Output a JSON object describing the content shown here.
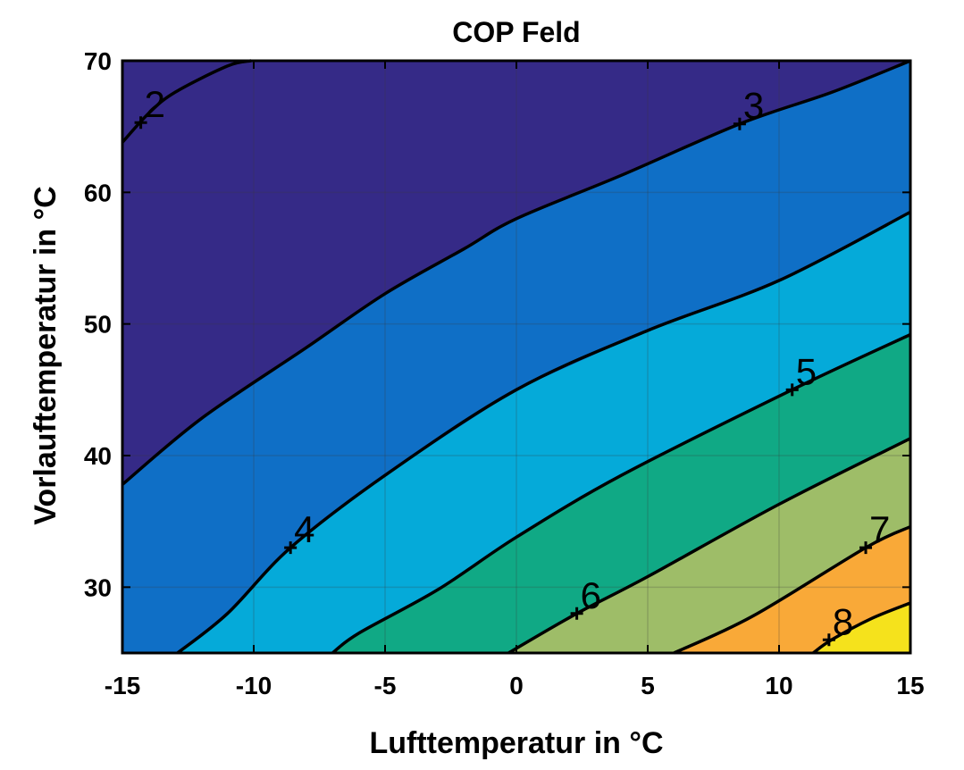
{
  "chart_data": {
    "type": "contourf",
    "title": "COP Feld",
    "xlabel": "Lufttemperatur in °C",
    "ylabel": "Vorlauftemperatur in °C",
    "xlim": [
      -15,
      15
    ],
    "ylim": [
      25,
      70
    ],
    "xticks": [
      "-15",
      "-10",
      "-5",
      "0",
      "5",
      "10",
      "15"
    ],
    "yticks": [
      "30",
      "40",
      "50",
      "60",
      "70"
    ],
    "grid": true,
    "contour_levels": [
      2,
      3,
      4,
      5,
      6,
      7,
      8
    ],
    "fill_colors": [
      "#352a87",
      "#352a87",
      "#0f6fc6",
      "#05aad9",
      "#10a985",
      "#9ebd68",
      "#f9a938",
      "#f5e21c"
    ],
    "contours": [
      {
        "level": 2,
        "points": [
          [
            -15.0,
            63.8
          ],
          [
            -14.0,
            66.0
          ],
          [
            -13.0,
            67.6
          ],
          [
            -11.0,
            69.6
          ],
          [
            -10.1,
            70.0
          ]
        ],
        "label": "2",
        "label_at": [
          -14.3,
          65.3
        ]
      },
      {
        "level": 3,
        "points": [
          [
            -15.0,
            37.8
          ],
          [
            -12.0,
            42.8
          ],
          [
            -8.0,
            48.2
          ],
          [
            -5.0,
            52.3
          ],
          [
            -2.0,
            55.7
          ],
          [
            0.0,
            58.0
          ],
          [
            4.0,
            61.3
          ],
          [
            8.5,
            65.2
          ],
          [
            12.0,
            67.6
          ],
          [
            15.0,
            70.0
          ]
        ],
        "label": "3",
        "label_at": [
          8.5,
          65.2
        ]
      },
      {
        "level": 4,
        "points": [
          [
            -12.9,
            25.0
          ],
          [
            -11.0,
            28.0
          ],
          [
            -8.6,
            33.0
          ],
          [
            -5.0,
            38.5
          ],
          [
            0.0,
            45.0
          ],
          [
            5.0,
            49.5
          ],
          [
            10.0,
            53.3
          ],
          [
            15.0,
            58.5
          ]
        ],
        "label": "4",
        "label_at": [
          -8.6,
          33.0
        ]
      },
      {
        "level": 5,
        "points": [
          [
            -7.0,
            25.0
          ],
          [
            -6.0,
            26.5
          ],
          [
            -3.0,
            29.8
          ],
          [
            0.0,
            33.8
          ],
          [
            4.0,
            38.5
          ],
          [
            10.5,
            45.0
          ],
          [
            15.0,
            49.2
          ]
        ],
        "label": "5",
        "label_at": [
          10.5,
          45.0
        ]
      },
      {
        "level": 6,
        "points": [
          [
            -0.3,
            25.0
          ],
          [
            2.3,
            28.0
          ],
          [
            5.0,
            30.8
          ],
          [
            10.0,
            36.3
          ],
          [
            15.0,
            41.3
          ]
        ],
        "label": "6",
        "label_at": [
          2.3,
          28.0
        ]
      },
      {
        "level": 7,
        "points": [
          [
            6.0,
            25.0
          ],
          [
            9.0,
            27.8
          ],
          [
            13.3,
            33.0
          ],
          [
            15.0,
            34.6
          ]
        ],
        "label": "7",
        "label_at": [
          13.3,
          33.0
        ]
      },
      {
        "level": 8,
        "points": [
          [
            11.3,
            25.0
          ],
          [
            12.0,
            26.0
          ],
          [
            13.5,
            27.6
          ],
          [
            15.0,
            28.8
          ]
        ],
        "label": "8",
        "label_at": [
          11.9,
          26.0
        ]
      }
    ]
  }
}
